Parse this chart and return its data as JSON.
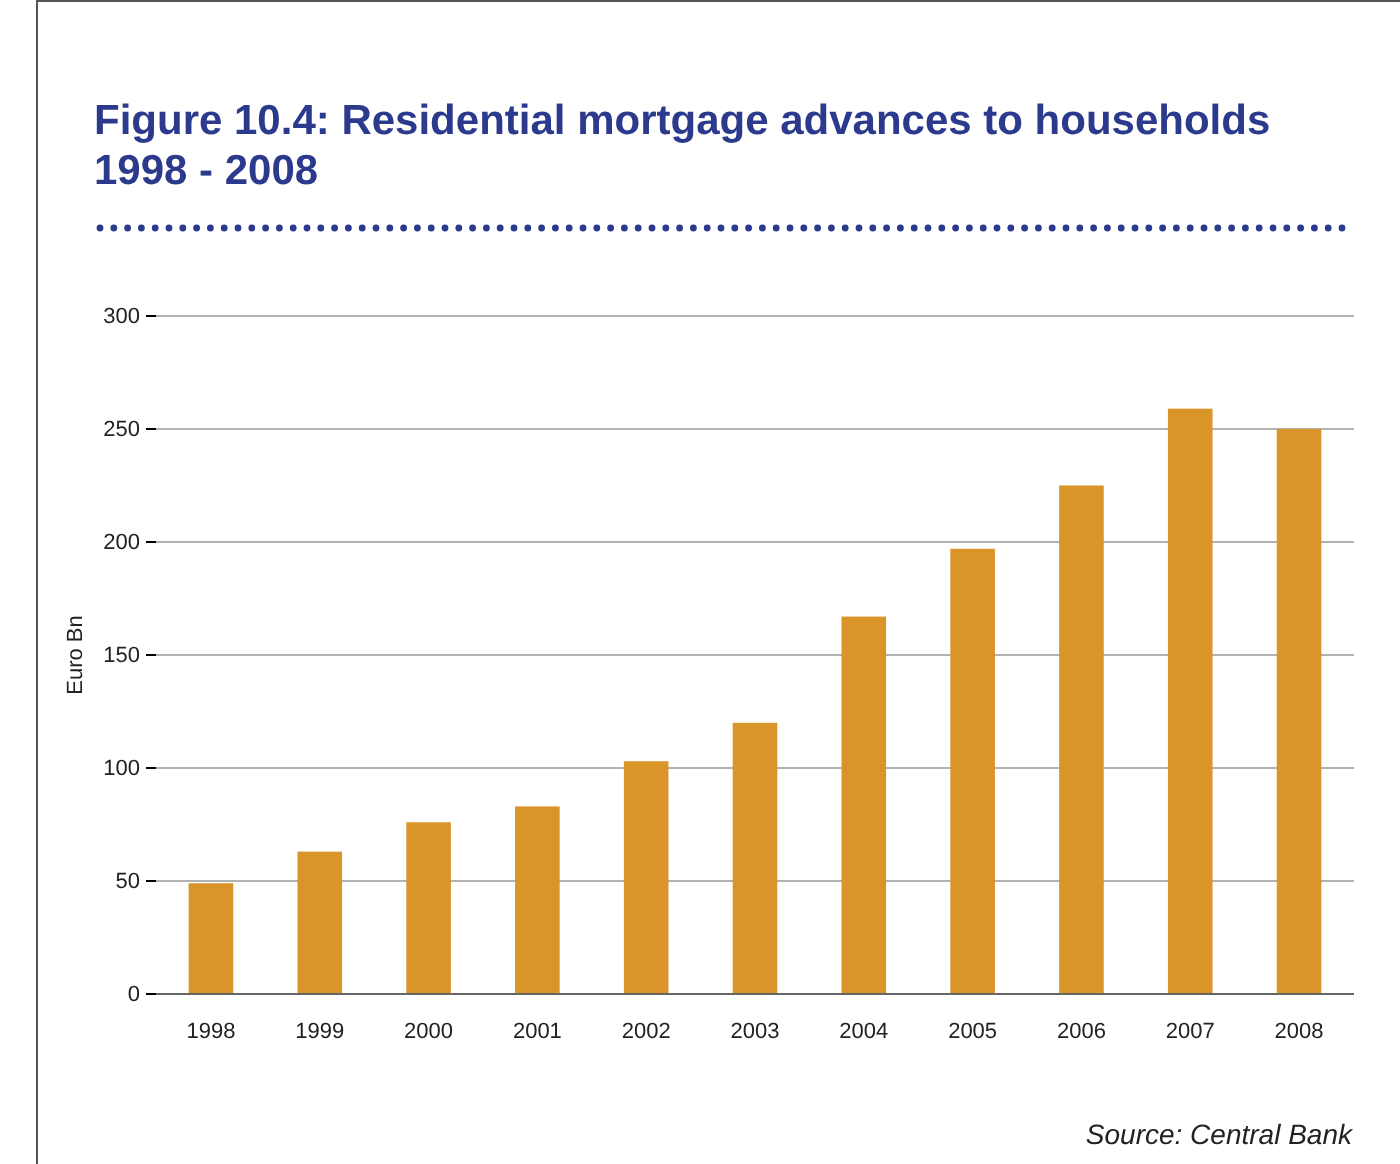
{
  "chart_data": {
    "type": "bar",
    "title": "Figure 10.4: Residential mortgage advances to households 1998 - 2008",
    "ylabel": "Euro Bn",
    "categories": [
      "1998",
      "1999",
      "2000",
      "2001",
      "2002",
      "2003",
      "2004",
      "2005",
      "2006",
      "2007",
      "2008"
    ],
    "values": [
      49,
      63,
      76,
      83,
      103,
      120,
      167,
      197,
      225,
      259,
      250
    ],
    "color": "#d9952a",
    "ylim": [
      0,
      300
    ],
    "yticks": [
      0,
      50,
      100,
      150,
      200,
      250,
      300
    ],
    "grid": "y",
    "annotations": [
      "Source: Central Bank"
    ]
  }
}
